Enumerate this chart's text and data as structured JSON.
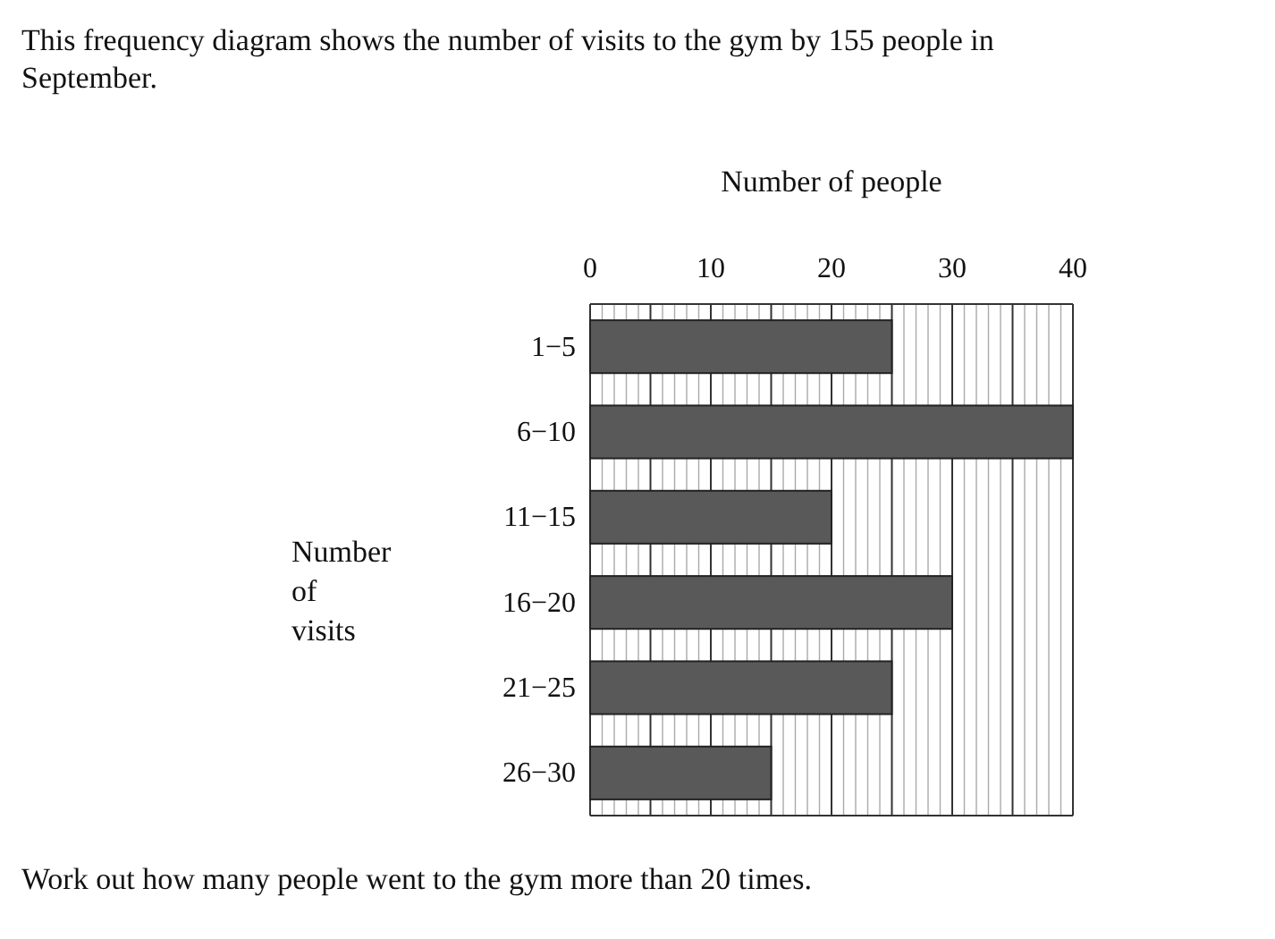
{
  "chart_data": {
    "type": "bar",
    "orientation": "horizontal",
    "title": "This frequency diagram shows the number of visits to the gym by 155 people in September.",
    "xlabel": "Number of people",
    "ylabel": "Number of visits",
    "categories": [
      "1−5",
      "6−10",
      "11−15",
      "16−20",
      "21−25",
      "26−30"
    ],
    "values": [
      25,
      40,
      20,
      30,
      25,
      15
    ],
    "color": "#595959",
    "xlim": [
      0,
      40
    ],
    "xticks": [
      0,
      {
        "value": 1,
        "label": null
      },
      {
        "value": 2,
        "label": null
      },
      {
        "value": 3,
        "label": null
      },
      {
        "value": 4,
        "label": null
      },
      {
        "value": 5,
        "label": null
      },
      {
        "value": 6,
        "label": null
      },
      {
        "value": 7,
        "label": null
      },
      {
        "value": 8,
        "label": null
      },
      {
        "value": 9,
        "label": null
      },
      10,
      {
        "value": 11,
        "label": null
      },
      {
        "value": 12,
        "label": null
      },
      {
        "value": 13,
        "label": null
      },
      {
        "value": 14,
        "label": null
      },
      {
        "value": 15,
        "label": null
      },
      {
        "value": 16,
        "label": null
      },
      {
        "value": 17,
        "label": null
      },
      {
        "value": 18,
        "label": null
      },
      {
        "value": 19,
        "label": null
      },
      20,
      {
        "value": 21,
        "label": null
      },
      {
        "value": 22,
        "label": null
      },
      {
        "value": 23,
        "label": null
      },
      {
        "value": 24,
        "label": null
      },
      {
        "value": 25,
        "label": null
      },
      {
        "value": 26,
        "label": null
      },
      {
        "value": 27,
        "label": null
      },
      {
        "value": 28,
        "label": null
      },
      {
        "value": 29,
        "label": null
      },
      30,
      {
        "value": 31,
        "label": null
      },
      {
        "value": 32,
        "label": null
      },
      {
        "value": 33,
        "label": null
      },
      {
        "value": 34,
        "label": null
      },
      {
        "value": 35,
        "label": null
      },
      {
        "value": 36,
        "label": null
      },
      {
        "value": 37,
        "label": null
      },
      {
        "value": 38,
        "label": null
      },
      {
        "value": 39,
        "label": null
      },
      40
    ],
    "grid": "x",
    "annotations": [
      "Work out how many people went to the gym more than 20 times."
    ]
  }
}
